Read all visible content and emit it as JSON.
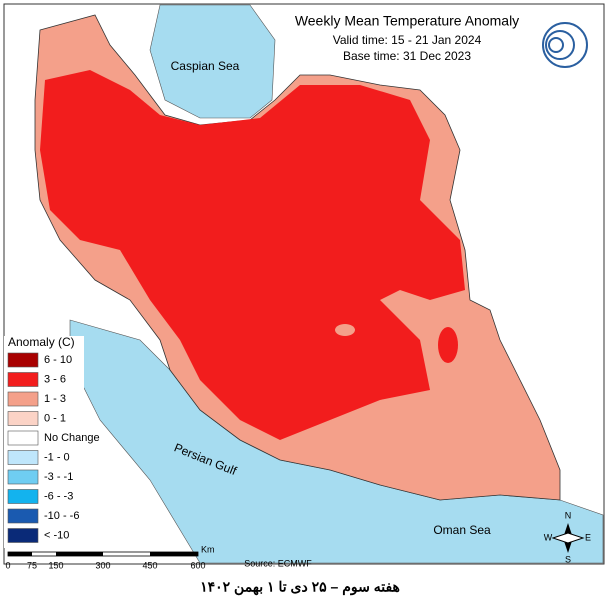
{
  "header": {
    "title": "Weekly Mean Temperature Anomaly",
    "valid_time": "Valid time: 15 - 21 Jan 2024",
    "base_time": "Base time: 31 Dec 2023"
  },
  "labels": {
    "caspian": "Caspian Sea",
    "gulf": "Persian Gulf",
    "oman": "Oman Sea"
  },
  "legend": {
    "title": "Anomaly (C)",
    "items": [
      {
        "label": "6 - 10",
        "color": "#a80000"
      },
      {
        "label": "3 - 6",
        "color": "#f21d1d"
      },
      {
        "label": "1 - 3",
        "color": "#f4a08a"
      },
      {
        "label": "0 - 1",
        "color": "#fbd3c6"
      },
      {
        "label": "No Change",
        "color": "#ffffff"
      },
      {
        "label": "-1 - 0",
        "color": "#bfe6fb"
      },
      {
        "label": "-3 - -1",
        "color": "#6fcdf2"
      },
      {
        "label": "-6 - -3",
        "color": "#13b3ee"
      },
      {
        "label": "-10 - -6",
        "color": "#1a5ab0"
      },
      {
        "label": "< -10",
        "color": "#0a2a78"
      }
    ]
  },
  "scale": {
    "labels": [
      "0",
      "75",
      "150",
      "300",
      "450",
      "600"
    ],
    "unit": "Km"
  },
  "source": "Source: ECMWF",
  "compass": {
    "n": "N",
    "s": "S",
    "e": "E",
    "w": "W"
  },
  "footer": "هفته سوم – ۲۵ دی تا ۱ بهمن ۱۴۰۲"
}
